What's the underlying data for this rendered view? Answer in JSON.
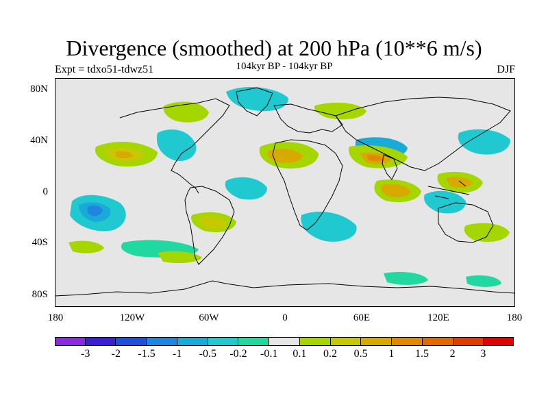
{
  "title": "Divergence (smoothed) at 200 hPa (10**6 m/s)",
  "experiment": "Expt = tdxo51-tdwz51",
  "period": "104kyr BP - 104kyr BP",
  "season": "DJF",
  "map": {
    "projection": "cylindrical-equidistant",
    "background_color": "#e6e6e6",
    "lat_labels": [
      "80N",
      "40N",
      "0",
      "40S",
      "80S"
    ],
    "lon_labels": [
      "180",
      "120W",
      "60W",
      "0",
      "60E",
      "120E",
      "180"
    ]
  },
  "colorbar": {
    "colors": [
      "#8a2be2",
      "#3a1fd6",
      "#1f4fdb",
      "#1f86e0",
      "#1aaad8",
      "#20c8d0",
      "#20d8a0",
      "#e6e6e6",
      "#a6d600",
      "#c8c800",
      "#d8aa00",
      "#e08a00",
      "#e06a00",
      "#e03c00",
      "#e00000"
    ],
    "labels": [
      "-3",
      "-2",
      "-1.5",
      "-1",
      "-0.5",
      "-0.2",
      "-0.1",
      "0.1",
      "0.2",
      "0.5",
      "1",
      "1.5",
      "2",
      "3"
    ]
  },
  "legend_label": ""
}
